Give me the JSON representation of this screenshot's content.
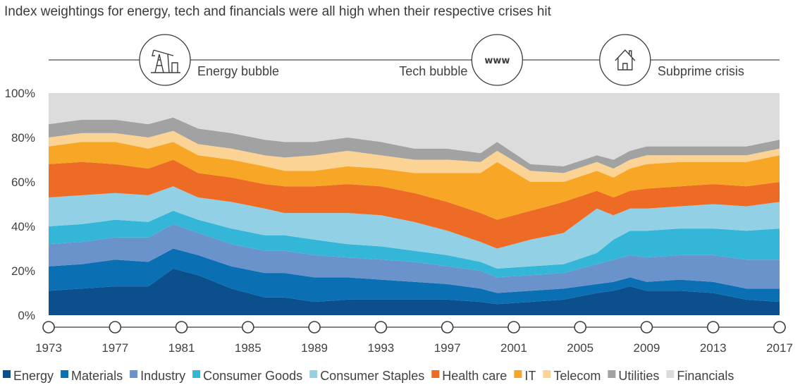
{
  "chart_data": {
    "type": "area",
    "stacked": true,
    "title": "Index weightings for energy, tech and financials were all high when their respective crises hit",
    "xlabel": "",
    "ylabel": "",
    "ylim": [
      0,
      100
    ],
    "xlim": [
      1973,
      2017
    ],
    "y_ticks": [
      0,
      20,
      40,
      60,
      80,
      100
    ],
    "y_tick_labels": [
      "0%",
      "20%",
      "40%",
      "60%",
      "80%",
      "100%"
    ],
    "x_ticks": [
      1973,
      1977,
      1981,
      1985,
      1989,
      1993,
      1997,
      2001,
      2005,
      2009,
      2013,
      2017
    ],
    "x_tick_labels": [
      "1973",
      "1977",
      "1981",
      "1985",
      "1989",
      "1993",
      "1997",
      "2001",
      "2005",
      "2009",
      "2013",
      "2017"
    ],
    "legend_position": "bottom",
    "x": [
      1973,
      1975,
      1977,
      1979,
      1980.5,
      1982,
      1984,
      1986,
      1987.2,
      1989,
      1991,
      1993,
      1995,
      1997,
      1999,
      2000,
      2002,
      2004,
      2006,
      2007,
      2008,
      2009,
      2011,
      2013,
      2015,
      2017
    ],
    "series": [
      {
        "name": "Energy",
        "color": "#0b4f8c",
        "values": [
          11,
          12,
          13,
          13,
          21,
          18,
          12,
          8,
          8,
          6,
          7,
          7,
          7,
          7,
          6,
          5,
          6,
          7,
          10,
          11,
          13,
          11,
          11,
          10,
          7,
          6
        ]
      },
      {
        "name": "Materials",
        "color": "#0b6fb3",
        "values": [
          11,
          11,
          12,
          11,
          9,
          9,
          10,
          11,
          11,
          11,
          10,
          9,
          8,
          7,
          6,
          5,
          5,
          5,
          4,
          4,
          4,
          4,
          5,
          5,
          5,
          6
        ]
      },
      {
        "name": "Industry",
        "color": "#6a93cc",
        "values": [
          10,
          10,
          10,
          11,
          11,
          10,
          10,
          10,
          10,
          10,
          9,
          9,
          9,
          8,
          8,
          7,
          7,
          7,
          9,
          10,
          10,
          11,
          11,
          12,
          13,
          13
        ]
      },
      {
        "name": "Consumer Goods",
        "color": "#34b6d8",
        "values": [
          8,
          8,
          8,
          7,
          6,
          6,
          7,
          7,
          7,
          7,
          6,
          6,
          5,
          5,
          4,
          4,
          4,
          4,
          5,
          9,
          11,
          12,
          12,
          12,
          13,
          14
        ]
      },
      {
        "name": "Consumer Staples",
        "color": "#92d1e5",
        "values": [
          13,
          13,
          12,
          12,
          11,
          10,
          12,
          12,
          10,
          12,
          14,
          14,
          13,
          11,
          9,
          9,
          12,
          14,
          20,
          11,
          10,
          10,
          10,
          11,
          11,
          12
        ]
      },
      {
        "name": "Health care",
        "color": "#ee6b26",
        "values": [
          15,
          15,
          13,
          12,
          12,
          11,
          11,
          11,
          12,
          12,
          13,
          13,
          13,
          13,
          13,
          13,
          13,
          14,
          8,
          8,
          8,
          9,
          9,
          9,
          9,
          9
        ]
      },
      {
        "name": "IT",
        "color": "#f7a626",
        "values": [
          8,
          9,
          10,
          9,
          8,
          8,
          8,
          8,
          7,
          7,
          8,
          8,
          9,
          13,
          18,
          26,
          13,
          9,
          9,
          9,
          10,
          11,
          11,
          10,
          11,
          12
        ]
      },
      {
        "name": "Telecom",
        "color": "#fbd395",
        "values": [
          4,
          4,
          4,
          5,
          5,
          5,
          5,
          5,
          6,
          7,
          7,
          6,
          6,
          6,
          5,
          5,
          5,
          4,
          4,
          4,
          4,
          4,
          3,
          3,
          3,
          3
        ]
      },
      {
        "name": "Utilities",
        "color": "#a2a2a2",
        "values": [
          6,
          6,
          6,
          6,
          6,
          7,
          7,
          7,
          7,
          6,
          6,
          6,
          5,
          5,
          4,
          4,
          3,
          3,
          3,
          4,
          4,
          4,
          4,
          4,
          4,
          4
        ]
      },
      {
        "name": "Financials",
        "color": "#dcdcdc",
        "values": [
          14,
          12,
          12,
          14,
          11,
          16,
          18,
          21,
          22,
          22,
          20,
          22,
          25,
          25,
          27,
          22,
          32,
          33,
          28,
          30,
          26,
          24,
          24,
          24,
          24,
          21
        ]
      }
    ],
    "annotations": [
      {
        "label": "Energy bubble",
        "year": 1980,
        "icon": "oil-pump-icon"
      },
      {
        "label": "Tech bubble",
        "year": 2000,
        "icon": "www-icon",
        "icon_text": "www"
      },
      {
        "label": "Subprime crisis",
        "year": 2007.7,
        "icon": "house-icon"
      }
    ]
  }
}
